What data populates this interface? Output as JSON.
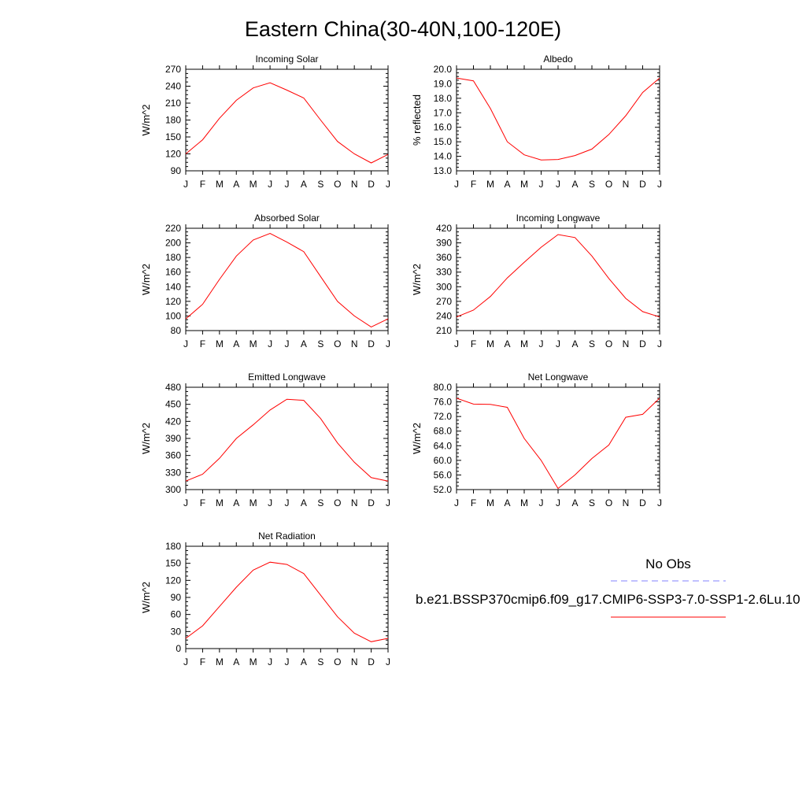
{
  "figure": {
    "title": "Eastern China(30-40N,100-120E)",
    "legend": {
      "entries": [
        {
          "label": "No Obs",
          "color": "#8080ff",
          "style": "dashed"
        },
        {
          "label": "b.e21.BSSP370cmip6.f09_g17.CMIP6-SSP3-7.0-SSP1-2.6Lu.10",
          "color": "#ff0000",
          "style": "solid"
        }
      ]
    }
  },
  "chart_data": [
    {
      "type": "line",
      "title": "Incoming Solar",
      "ylabel": "W/m^2",
      "xlabel": "",
      "categories": [
        "J",
        "F",
        "M",
        "A",
        "M",
        "J",
        "J",
        "A",
        "S",
        "O",
        "N",
        "D",
        "J"
      ],
      "ylim": [
        90,
        270
      ],
      "yticks": [
        "270",
        "240",
        "210",
        "180",
        "150",
        "120",
        "90"
      ],
      "series": [
        {
          "color": "#ff0000",
          "values": [
            120,
            145,
            183,
            215,
            237,
            246,
            233,
            219,
            180,
            142,
            120,
            104,
            119
          ]
        }
      ]
    },
    {
      "type": "line",
      "title": "Albedo",
      "ylabel": "% reflected",
      "xlabel": "",
      "categories": [
        "J",
        "F",
        "M",
        "A",
        "M",
        "J",
        "J",
        "A",
        "S",
        "O",
        "N",
        "D",
        "J"
      ],
      "ylim": [
        13.0,
        20.0
      ],
      "yticks": [
        "20.0",
        "19.0",
        "18.0",
        "17.0",
        "16.0",
        "15.0",
        "14.0",
        "13.0"
      ],
      "series": [
        {
          "color": "#ff0000",
          "values": [
            19.4,
            19.2,
            17.3,
            15.0,
            14.1,
            13.75,
            13.78,
            14.05,
            14.5,
            15.5,
            16.8,
            18.4,
            19.4
          ]
        }
      ]
    },
    {
      "type": "line",
      "title": "Absorbed Solar",
      "ylabel": "W/m^2",
      "xlabel": "",
      "categories": [
        "J",
        "F",
        "M",
        "A",
        "M",
        "J",
        "J",
        "A",
        "S",
        "O",
        "N",
        "D",
        "J"
      ],
      "ylim": [
        80,
        220
      ],
      "yticks": [
        "220",
        "200",
        "180",
        "160",
        "140",
        "120",
        "100",
        "80"
      ],
      "series": [
        {
          "color": "#ff0000",
          "values": [
            96,
            116,
            150,
            182,
            204,
            213,
            201,
            188,
            154,
            120,
            100,
            85,
            96
          ]
        }
      ]
    },
    {
      "type": "line",
      "title": "Incoming Longwave",
      "ylabel": "W/m^2",
      "xlabel": "",
      "categories": [
        "J",
        "F",
        "M",
        "A",
        "M",
        "J",
        "J",
        "A",
        "S",
        "O",
        "N",
        "D",
        "J"
      ],
      "ylim": [
        210,
        420
      ],
      "yticks": [
        "420",
        "390",
        "360",
        "330",
        "300",
        "270",
        "240",
        "210"
      ],
      "series": [
        {
          "color": "#ff0000",
          "values": [
            238,
            252,
            280,
            318,
            350,
            381,
            407,
            401,
            363,
            317,
            276,
            249,
            238
          ]
        }
      ]
    },
    {
      "type": "line",
      "title": "Emitted Longwave",
      "ylabel": "W/m^2",
      "xlabel": "",
      "categories": [
        "J",
        "F",
        "M",
        "A",
        "M",
        "J",
        "J",
        "A",
        "S",
        "O",
        "N",
        "D",
        "J"
      ],
      "ylim": [
        300,
        480
      ],
      "yticks": [
        "480",
        "450",
        "420",
        "390",
        "360",
        "330",
        "300"
      ],
      "series": [
        {
          "color": "#ff0000",
          "values": [
            315,
            327,
            355,
            390,
            414,
            440,
            459,
            457,
            425,
            382,
            348,
            321,
            315
          ]
        }
      ]
    },
    {
      "type": "line",
      "title": "Net Longwave",
      "ylabel": "W/m^2",
      "xlabel": "",
      "categories": [
        "J",
        "F",
        "M",
        "A",
        "M",
        "J",
        "J",
        "A",
        "S",
        "O",
        "N",
        "D",
        "J"
      ],
      "ylim": [
        52.0,
        80.0
      ],
      "yticks": [
        "80.0",
        "76.0",
        "72.0",
        "68.0",
        "64.0",
        "60.0",
        "56.0",
        "52.0"
      ],
      "series": [
        {
          "color": "#ff0000",
          "values": [
            77.0,
            75.4,
            75.3,
            74.5,
            66.0,
            60.0,
            52.3,
            56.0,
            60.5,
            64.2,
            71.8,
            72.6,
            77.0
          ]
        }
      ]
    },
    {
      "type": "line",
      "title": "Net Radiation",
      "ylabel": "W/m^2",
      "xlabel": "",
      "categories": [
        "J",
        "F",
        "M",
        "A",
        "M",
        "J",
        "J",
        "A",
        "S",
        "O",
        "N",
        "D",
        "J"
      ],
      "ylim": [
        0,
        180
      ],
      "yticks": [
        "180",
        "150",
        "120",
        "90",
        "60",
        "30",
        "0"
      ],
      "series": [
        {
          "color": "#ff0000",
          "values": [
            18,
            40,
            74,
            108,
            138,
            152,
            148,
            132,
            94,
            56,
            27,
            12,
            18
          ]
        }
      ]
    }
  ]
}
